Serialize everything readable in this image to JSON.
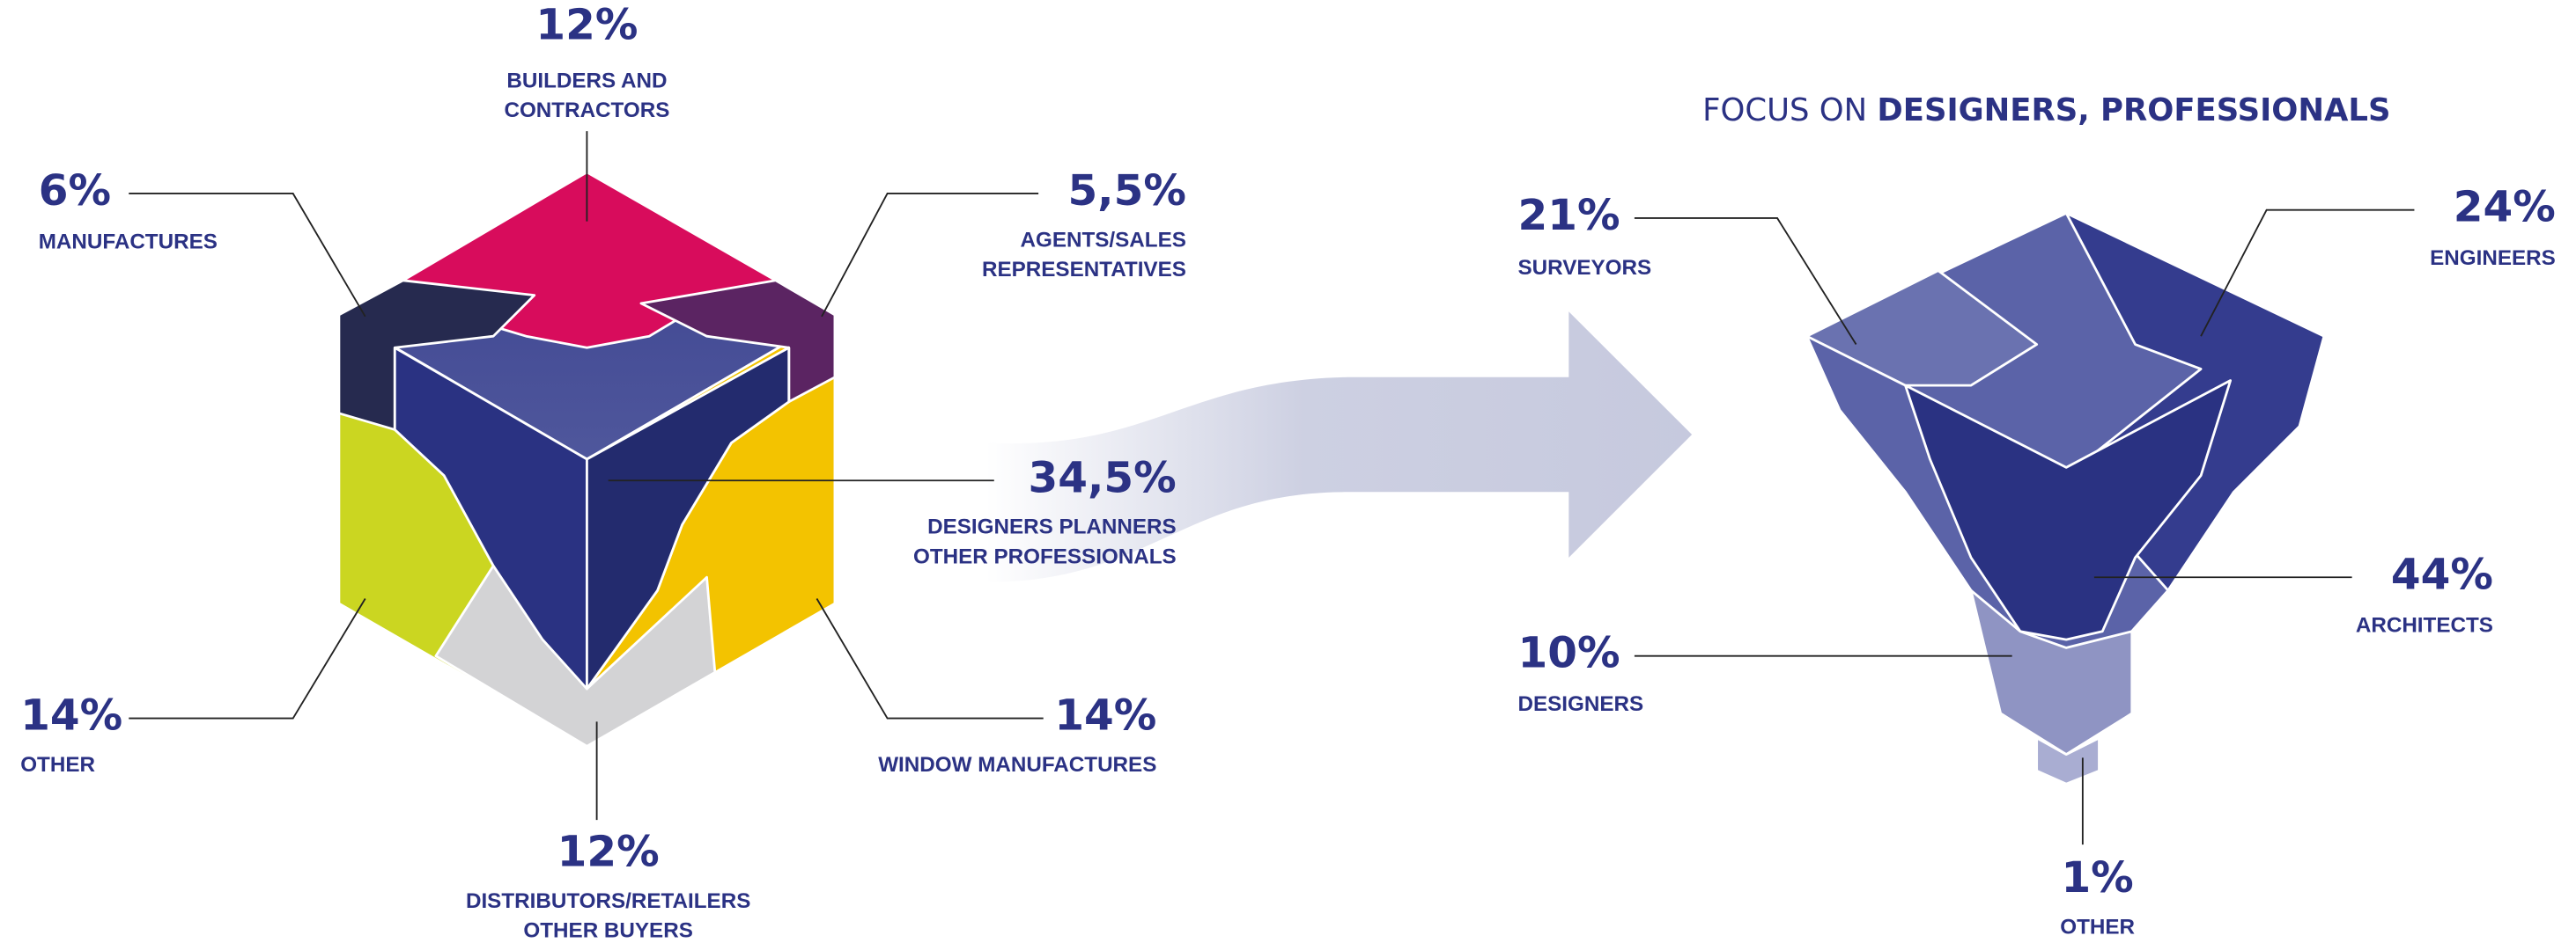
{
  "left": {
    "segments": [
      {
        "value": "12%",
        "label": [
          "BUILDERS AND",
          "CONTRACTORS"
        ]
      },
      {
        "value": "6%",
        "label": [
          "MANUFACTURES"
        ]
      },
      {
        "value": "5,5%",
        "label": [
          "AGENTS/SALES",
          "REPRESENTATIVES"
        ]
      },
      {
        "value": "34,5%",
        "label": [
          "DESIGNERS PLANNERS",
          "OTHER PROFESSIONALS"
        ]
      },
      {
        "value": "14%",
        "label": [
          "OTHER"
        ]
      },
      {
        "value": "14%",
        "label": [
          "WINDOW MANUFACTURES"
        ]
      },
      {
        "value": "12%",
        "label": [
          "DISTRIBUTORS/RETAILERS",
          "OTHER BUYERS"
        ]
      }
    ]
  },
  "right": {
    "title": {
      "prefix": "FOCUS ON",
      "emphasis": "DESIGNERS, PROFESSIONALS"
    },
    "segments": [
      {
        "value": "21%",
        "label": [
          "SURVEYORS"
        ]
      },
      {
        "value": "24%",
        "label": [
          "ENGINEERS"
        ]
      },
      {
        "value": "44%",
        "label": [
          "ARCHITECTS"
        ]
      },
      {
        "value": "10%",
        "label": [
          "DESIGNERS"
        ]
      },
      {
        "value": "1%",
        "label": [
          "OTHER"
        ]
      }
    ]
  }
}
